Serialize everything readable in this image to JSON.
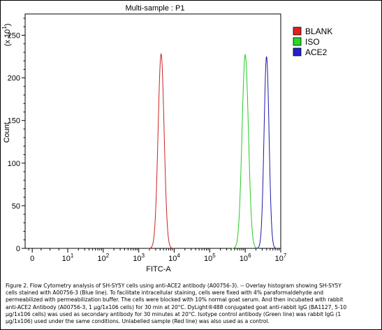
{
  "chart_data": {
    "type": "line",
    "title": "Multi-sample : P1",
    "xlabel": "FITC-A",
    "ylabel": "Count",
    "y_multiplier_label": "(x 10",
    "y_multiplier_exp": "1",
    "y_multiplier_close": ")",
    "x_scale": "log",
    "xlim": [
      -0.2,
      7
    ],
    "ylim": [
      0,
      275
    ],
    "x_ticks": [
      {
        "value": 0,
        "label": "0"
      },
      {
        "value": 1,
        "label": "10",
        "exp": "1"
      },
      {
        "value": 2,
        "label": "10",
        "exp": "2"
      },
      {
        "value": 3,
        "label": "10",
        "exp": "3"
      },
      {
        "value": 4,
        "label": "10",
        "exp": "4"
      },
      {
        "value": 5,
        "label": "10",
        "exp": "5"
      },
      {
        "value": 6,
        "label": "10",
        "exp": "6"
      },
      {
        "value": 7,
        "label": "10",
        "exp": "7"
      }
    ],
    "y_ticks": [
      0,
      50,
      100,
      150,
      200,
      250
    ],
    "legend": "right",
    "series": [
      {
        "name": "BLANK",
        "color": "#cc2222",
        "peak_log10": 3.63,
        "peak_count": 228,
        "width": 0.085
      },
      {
        "name": "ISO",
        "color": "#22cc22",
        "peak_log10": 6.0,
        "peak_count": 227,
        "width": 0.09
      },
      {
        "name": "ACE2",
        "color": "#1a1aaa",
        "peak_log10": 6.6,
        "peak_count": 225,
        "width": 0.07
      }
    ]
  },
  "legend_colors": {
    "BLANK": "#e02020",
    "ISO": "#22dd22",
    "ACE2": "#2222cc"
  },
  "caption": "Figure 2. Flow Cytometry analysis of SH-SY5Y cells using anti-ACE2 antibody (A00756-3).  -- Overlay histogram showing SH-SY5Y\ncells stained with A00756-3 (Blue line). To facilitate intracellular staining, cells were fixed with 4% paraformaldehyde and\npermeabilized with permeabilization buffer. The cells were blocked with 10% normal goat serum. And then incubated with rabbit\nanti-ACE2 Antibody (A00756-3, 1 µg/1x106 cells) for 30 min at 20°C. DyLight®488 conjugated goat anti-rabbit IgG (BA1127, 5-10\nµg/1x106 cells) was used as secondary antibody for 30 minutes at 20°C. Isotype control antibody (Green line) was rabbit IgG (1\nµg/1x106) used under the same conditions. Unlabelled sample (Red line) was also used as a control."
}
